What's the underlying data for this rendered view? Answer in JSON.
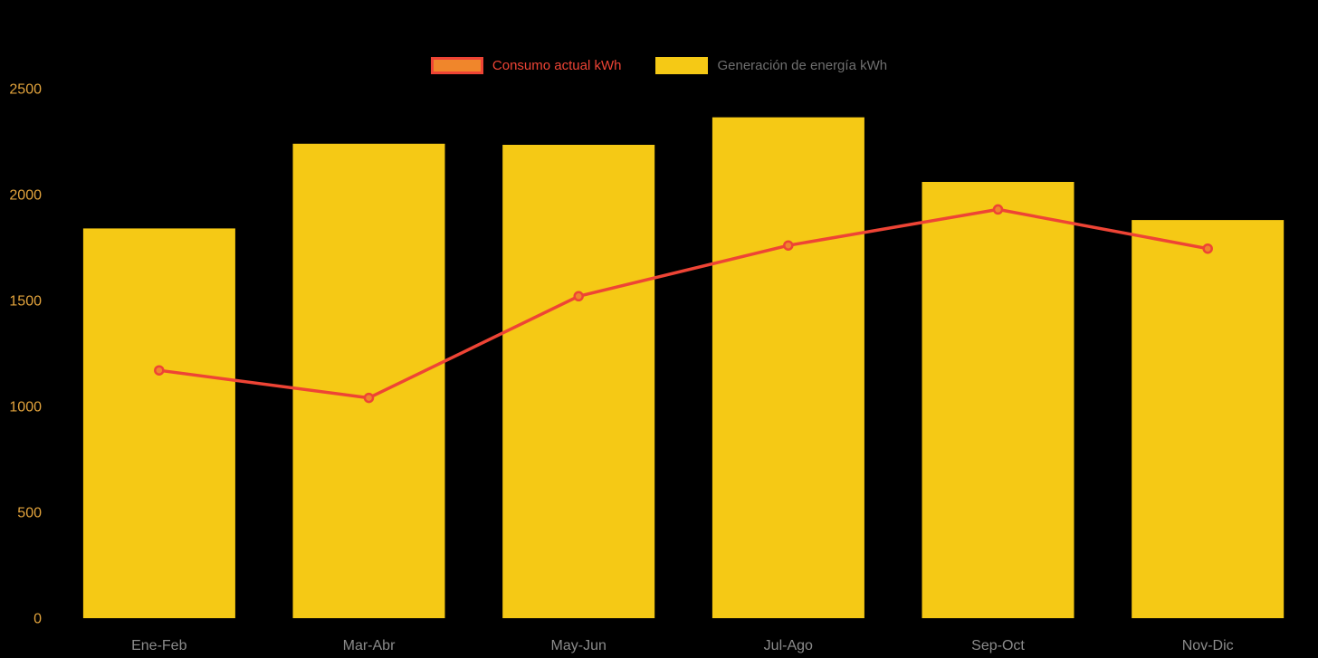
{
  "chart_data": {
    "type": "bar",
    "subtype": "combo-bar-line",
    "title": "",
    "xlabel": "",
    "ylabel": "",
    "categories": [
      "Ene-Feb",
      "Mar-Abr",
      "May-Jun",
      "Jul-Ago",
      "Sep-Oct",
      "Nov-Dic"
    ],
    "series": [
      {
        "name": "Consumo actual kWh",
        "type": "line",
        "values": [
          1170,
          1040,
          1520,
          1760,
          1930,
          1745
        ],
        "line_color": "#EE4435",
        "marker_fill": "#F0862B",
        "marker_stroke": "#EE4435"
      },
      {
        "name": "Generación de energía kWh",
        "type": "bar",
        "values": [
          1840,
          2240,
          2235,
          2365,
          2060,
          1880
        ],
        "bar_color": "#F5C915"
      }
    ],
    "ylim": [
      0,
      2500
    ],
    "yticks": [
      0,
      500,
      1000,
      1500,
      2000,
      2500
    ],
    "grid": false,
    "legend_position": "top-center",
    "colors": {
      "background": "#000000",
      "y_tick_label": "#E2A33C",
      "x_tick_label": "#8B8B8B",
      "legend_consumo_text": "#EE4435",
      "legend_generacion_text": "#6F6F6F"
    }
  }
}
